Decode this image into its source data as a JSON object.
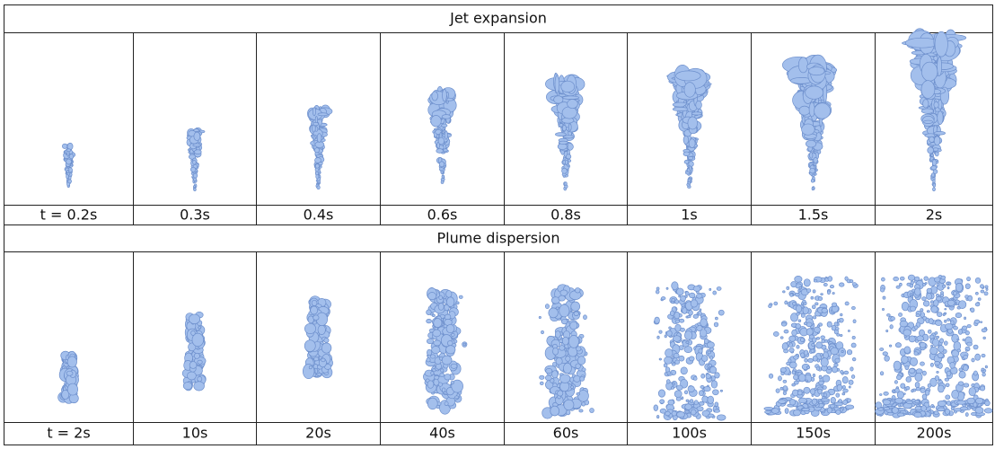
{
  "sections": [
    {
      "title": "Jet expansion",
      "labels": [
        "t = 0.2s",
        "0.3s",
        "0.4s",
        "0.6s",
        "0.8s",
        "1s",
        "1.5s",
        "2s"
      ]
    },
    {
      "title": "Plume dispersion",
      "labels": [
        "t = 2s",
        "10s",
        "20s",
        "40s",
        "60s",
        "100s",
        "150s",
        "200s"
      ]
    }
  ]
}
